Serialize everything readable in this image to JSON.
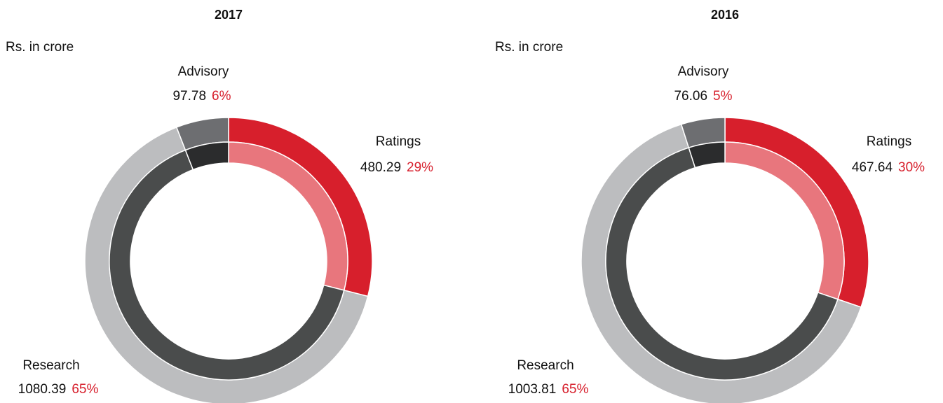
{
  "chart_data": [
    {
      "type": "pie",
      "title": "2017",
      "subtitle": "Rs. in crore",
      "categories": [
        "Ratings",
        "Research",
        "Advisory"
      ],
      "values": [
        480.29,
        1080.39,
        97.78
      ],
      "percentages": [
        29,
        65,
        6
      ],
      "percentage_labels": [
        "29%",
        "65%",
        "6%"
      ],
      "colors": [
        "#d71f2c",
        "#bcbdbf",
        "#6d6e71"
      ],
      "inner_colors": [
        "#e8767d",
        "#4a4c4c",
        "#2b2c2d"
      ]
    },
    {
      "type": "pie",
      "title": "2016",
      "subtitle": "Rs. in crore",
      "categories": [
        "Ratings",
        "Research",
        "Advisory"
      ],
      "values": [
        467.64,
        1003.81,
        76.06
      ],
      "percentages": [
        30,
        65,
        5
      ],
      "percentage_labels": [
        "30%",
        "65%",
        "5%"
      ],
      "colors": [
        "#d71f2c",
        "#bcbdbf",
        "#6d6e71"
      ],
      "inner_colors": [
        "#e8767d",
        "#4a4c4c",
        "#2b2c2d"
      ]
    }
  ]
}
